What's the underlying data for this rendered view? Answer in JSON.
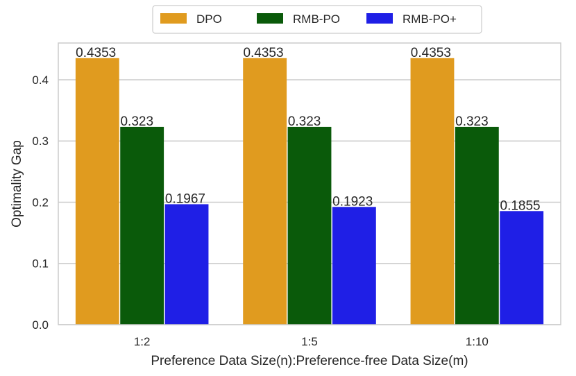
{
  "chart_data": {
    "type": "bar",
    "title": "",
    "xlabel": "Preference Data Size(n):Preference-free Data Size(m)",
    "ylabel": "Optimality Gap",
    "categories": [
      "1:2",
      "1:5",
      "1:10"
    ],
    "ylim": [
      0,
      0.46
    ],
    "yticks": [
      0.0,
      0.1,
      0.2,
      0.3,
      0.4
    ],
    "ytick_labels": [
      "0.0",
      "0.1",
      "0.2",
      "0.3",
      "0.4"
    ],
    "grid": "horizontal",
    "legend_position": "top-center",
    "series": [
      {
        "name": "DPO",
        "color": "#e09b1f",
        "values": [
          0.4353,
          0.4353,
          0.4353
        ],
        "labels": [
          "0.4353",
          "0.4353",
          "0.4353"
        ]
      },
      {
        "name": "RMB-PO",
        "color": "#0a5a0a",
        "values": [
          0.323,
          0.323,
          0.323
        ],
        "labels": [
          "0.323",
          "0.323",
          "0.323"
        ]
      },
      {
        "name": "RMB-PO+",
        "color": "#1f1fe6",
        "values": [
          0.1967,
          0.1923,
          0.1855
        ],
        "labels": [
          "0.1967",
          "0.1923",
          "0.1855"
        ]
      }
    ]
  }
}
